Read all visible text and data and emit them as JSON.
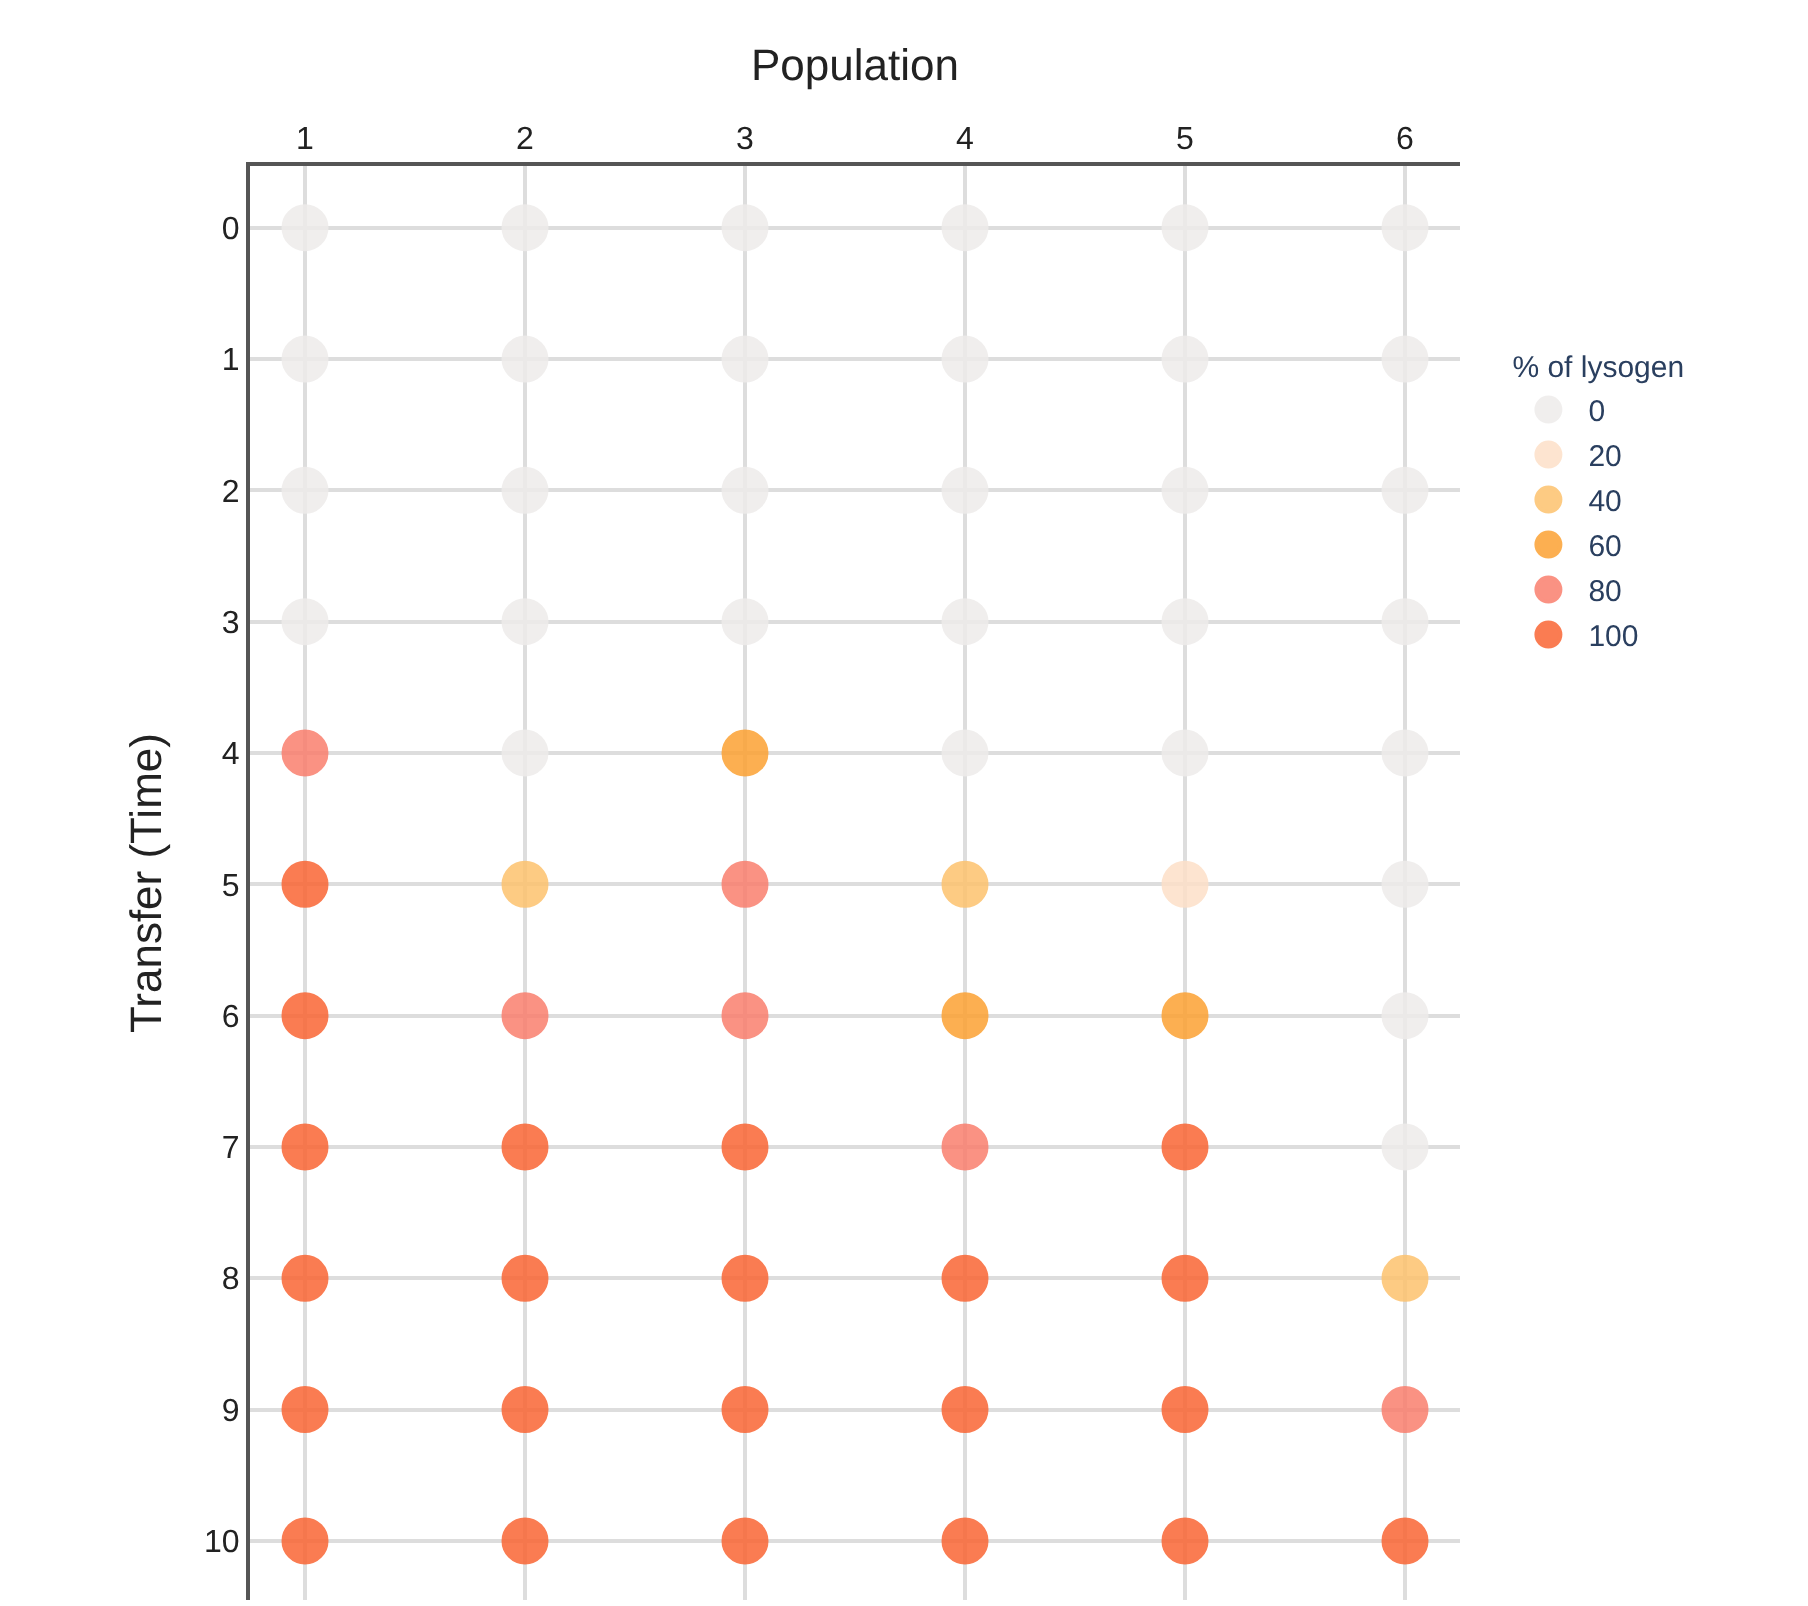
{
  "chart_data": {
    "type": "scatter",
    "xlabel": "Population",
    "ylabel": "Transfer (Time)",
    "legend_title": "% of lysogen",
    "legend": "right",
    "grid": true,
    "marker": "circle",
    "xlim": [
      0.75,
      6.25
    ],
    "xticks": [
      1,
      2,
      3,
      4,
      5,
      6
    ],
    "ylim": [
      10.45,
      -0.47
    ],
    "yticks": [
      0,
      1,
      2,
      3,
      4,
      5,
      6,
      7,
      8,
      9,
      10
    ],
    "series": [
      {
        "name": "0",
        "color": "#eeeceb",
        "x": [
          1,
          2,
          3,
          4,
          5,
          6,
          1,
          2,
          3,
          4,
          5,
          6,
          1,
          2,
          3,
          4,
          5,
          6,
          1,
          2,
          3,
          4,
          5,
          6,
          2,
          4,
          5,
          6,
          6,
          6,
          6
        ],
        "values": [
          0,
          0,
          0,
          0,
          0,
          0,
          1,
          1,
          1,
          1,
          1,
          1,
          2,
          2,
          2,
          2,
          2,
          2,
          3,
          3,
          3,
          3,
          3,
          3,
          4,
          4,
          4,
          4,
          5,
          6,
          7
        ]
      },
      {
        "name": "20",
        "color": "#fde0c8",
        "x": [
          5
        ],
        "values": [
          5
        ]
      },
      {
        "name": "40",
        "color": "#fdc26e",
        "x": [
          2,
          4,
          6
        ],
        "values": [
          5,
          5,
          8
        ]
      },
      {
        "name": "60",
        "color": "#fca233",
        "x": [
          3,
          4,
          5
        ],
        "values": [
          4,
          6,
          6
        ]
      },
      {
        "name": "80",
        "color": "#fa7f6e",
        "x": [
          1,
          3,
          2,
          3,
          4,
          6
        ],
        "values": [
          4,
          5,
          6,
          6,
          7,
          9
        ]
      },
      {
        "name": "100",
        "color": "#fa6634",
        "x": [
          1,
          1,
          1,
          2,
          3,
          5,
          1,
          2,
          3,
          4,
          5,
          1,
          2,
          3,
          4,
          5,
          1,
          2,
          3,
          4,
          5,
          6
        ],
        "values": [
          5,
          6,
          7,
          7,
          7,
          7,
          8,
          8,
          8,
          8,
          8,
          9,
          9,
          9,
          9,
          9,
          10,
          10,
          10,
          10,
          10,
          10
        ]
      }
    ]
  }
}
